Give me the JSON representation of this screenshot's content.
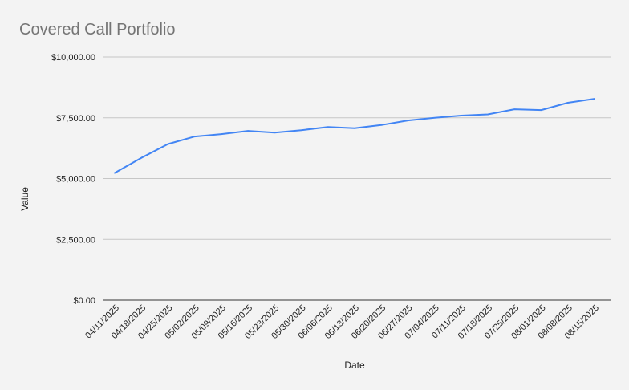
{
  "chart_data": {
    "type": "line",
    "title": "Covered Call Portfolio",
    "xlabel": "Date",
    "ylabel": "Value",
    "ylim": [
      0,
      10000
    ],
    "y_ticks": [
      0,
      2500,
      5000,
      7500,
      10000
    ],
    "y_tick_labels": [
      "$0.00",
      "$2,500.00",
      "$5,000.00",
      "$7,500.00",
      "$10,000.00"
    ],
    "grid": true,
    "legend": "none",
    "categories": [
      "04/11/2025",
      "04/18/2025",
      "04/25/2025",
      "05/02/2025",
      "05/09/2025",
      "05/16/2025",
      "05/23/2025",
      "05/30/2025",
      "06/06/2025",
      "06/13/2025",
      "06/20/2025",
      "06/27/2025",
      "07/04/2025",
      "07/11/2025",
      "07/18/2025",
      "07/25/2025",
      "08/01/2025",
      "08/08/2025",
      "08/15/2025"
    ],
    "series": [
      {
        "color": "#4285f4",
        "values": [
          5230,
          5850,
          6420,
          6730,
          6830,
          6960,
          6890,
          6990,
          7120,
          7070,
          7200,
          7390,
          7500,
          7590,
          7640,
          7850,
          7820,
          8120,
          8280
        ]
      }
    ]
  }
}
